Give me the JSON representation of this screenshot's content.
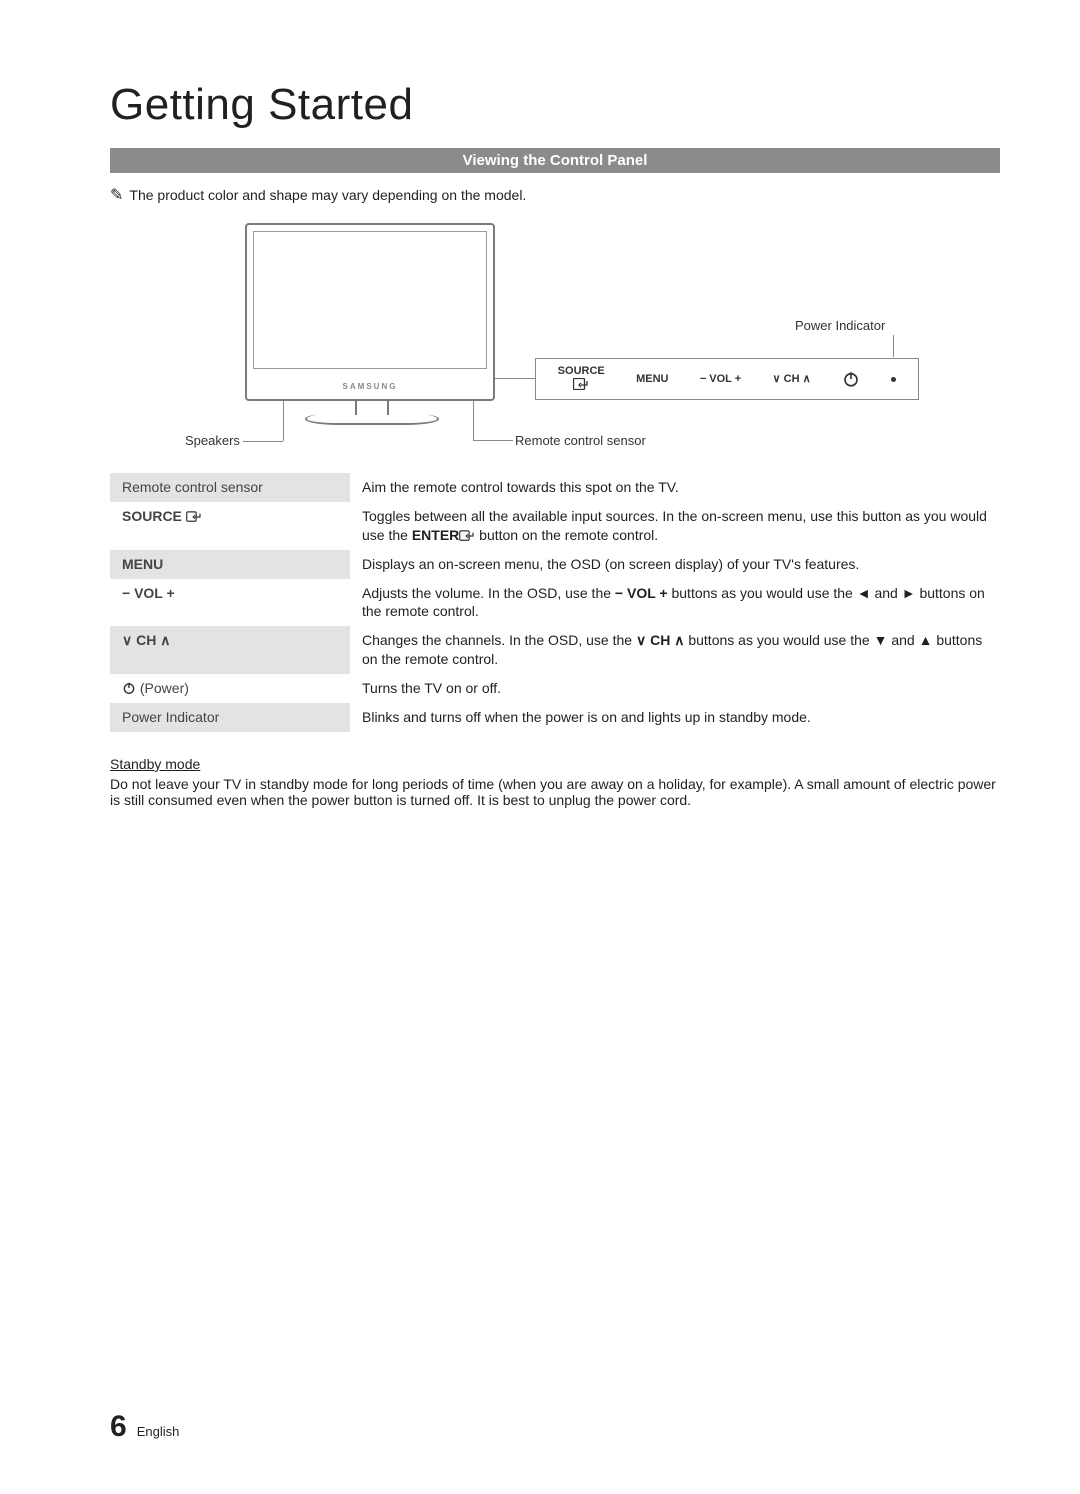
{
  "title": "Getting Started",
  "section_heading": "Viewing the Control Panel",
  "note_text": "The product color and shape may vary depending on the model.",
  "diagram": {
    "power_indicator_label": "Power Indicator",
    "speakers_label": "Speakers",
    "sensor_label": "Remote control sensor",
    "tv_logo": "SAMSUNG",
    "panel": {
      "source_top": "SOURCE",
      "menu": "MENU",
      "vol": "− VOL +",
      "ch": "∨ CH ∧"
    }
  },
  "rows": [
    {
      "key": "Remote control sensor",
      "key_bold": false,
      "shaded": true,
      "desc_parts": [
        {
          "t": "Aim the remote control towards this spot on the TV."
        }
      ]
    },
    {
      "key": "SOURCE",
      "key_bold": true,
      "key_icon": "enter",
      "shaded": false,
      "desc_parts": [
        {
          "t": "Toggles between all the available input sources. In the on-screen menu, use this button as you would use the "
        },
        {
          "t": "ENTER",
          "bold": true
        },
        {
          "icon": "enter"
        },
        {
          "t": " button on the remote control."
        }
      ]
    },
    {
      "key": "MENU",
      "key_bold": true,
      "shaded": true,
      "desc_parts": [
        {
          "t": "Displays an on-screen menu, the OSD (on screen display) of your TV's features."
        }
      ]
    },
    {
      "key": "− VOL +",
      "key_bold": true,
      "shaded": false,
      "desc_parts": [
        {
          "t": "Adjusts the volume. In the OSD, use the "
        },
        {
          "t": "− VOL +",
          "bold": true
        },
        {
          "t": " buttons as you would use the ◄ and ► buttons on the remote control."
        }
      ]
    },
    {
      "key": "∨ CH ∧",
      "key_bold": true,
      "shaded": true,
      "desc_parts": [
        {
          "t": "Changes the channels. In the OSD, use the "
        },
        {
          "t": "∨ CH ∧",
          "bold": true
        },
        {
          "t": " buttons as you would use the ▼ and ▲ buttons on the remote control."
        }
      ]
    },
    {
      "key": " (Power)",
      "key_icon_prefix": "power",
      "key_bold": false,
      "shaded": false,
      "desc_parts": [
        {
          "t": "Turns the TV on or off."
        }
      ]
    },
    {
      "key": "Power Indicator",
      "key_bold": false,
      "shaded": true,
      "desc_parts": [
        {
          "t": "Blinks and turns off when the power is on and lights up in standby mode."
        }
      ]
    }
  ],
  "standby": {
    "title": "Standby mode",
    "body": "Do not leave your TV in standby mode for long periods of time (when you are away on a holiday, for example). A small amount of electric power is still consumed even when the power button is turned off. It is best to unplug the power cord."
  },
  "footer": {
    "page_number": "6",
    "language": "English"
  },
  "colors": {
    "bar_bg": "#8b8b8b",
    "shade_bg": "#e3e3e3",
    "line": "#888888"
  }
}
